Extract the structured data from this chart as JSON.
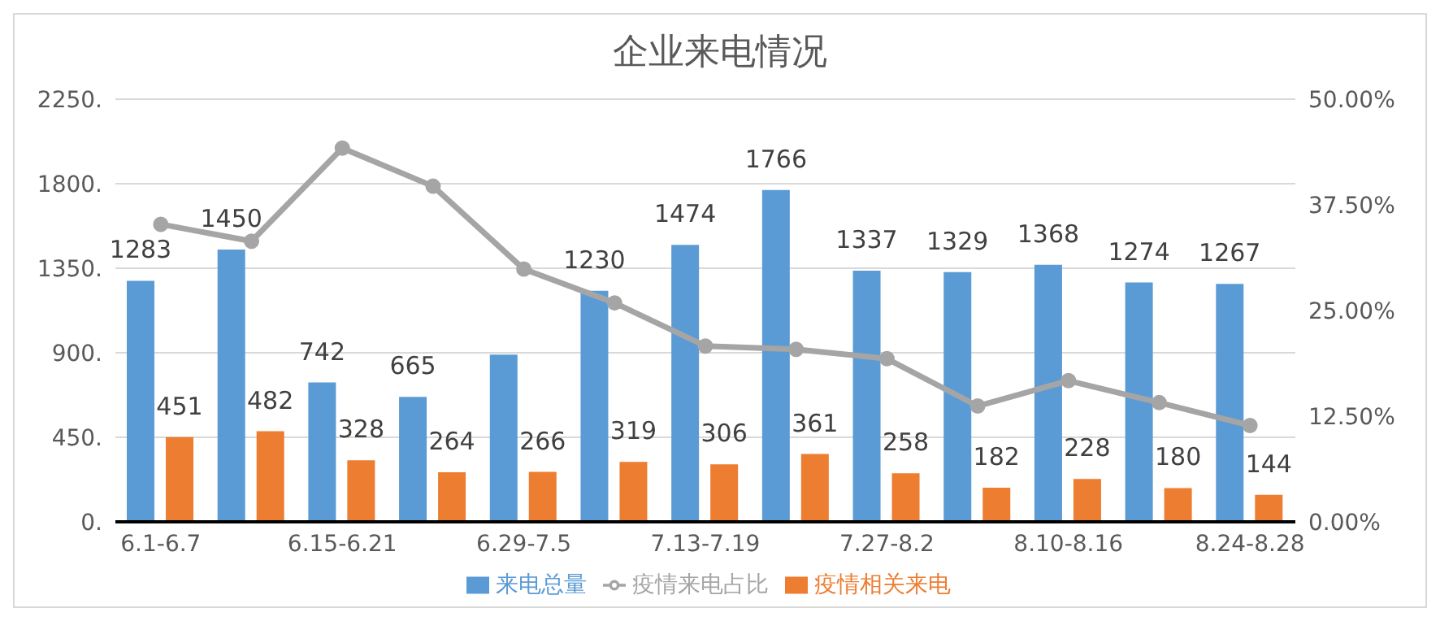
{
  "chart_data": {
    "type": "bar",
    "title": "企业来电情况",
    "categories": [
      "6.1-6.7",
      null,
      "6.15-6.21",
      null,
      "6.29-7.5",
      null,
      "7.13-7.19",
      null,
      "7.27-8.2",
      null,
      "8.10-8.16",
      null,
      "8.24-8.28"
    ],
    "series": [
      {
        "name": "来电总量",
        "color": "#5b9bd5",
        "values": [
          1283,
          1450,
          742,
          665,
          890,
          1230,
          1474,
          1766,
          1337,
          1329,
          1368,
          1274,
          1267
        ],
        "value_labels": [
          "1283",
          "1450",
          "742",
          "665",
          null,
          "1230",
          "1474",
          "1766",
          "1337",
          "1329",
          "1368",
          "1274",
          "1267"
        ]
      },
      {
        "name": "疫情相关来电",
        "color": "#ed7d31",
        "values": [
          451,
          482,
          328,
          264,
          266,
          319,
          306,
          361,
          258,
          182,
          228,
          180,
          144
        ],
        "value_labels": [
          "451",
          "482",
          "328",
          "264",
          "266",
          "319",
          "306",
          "361",
          "258",
          "182",
          "228",
          "180",
          "144"
        ]
      },
      {
        "name": "疫情来电占比",
        "type": "line",
        "axis": "y2",
        "color": "#a5a5a5",
        "values": [
          35.2,
          33.2,
          44.2,
          39.7,
          29.9,
          25.9,
          20.8,
          20.4,
          19.3,
          13.7,
          16.7,
          14.1,
          11.4
        ]
      }
    ],
    "ylim": [
      0,
      2250
    ],
    "yticks": [
      {
        "value": 0,
        "label": "0."
      },
      {
        "value": 450,
        "label": "450."
      },
      {
        "value": 900,
        "label": "900."
      },
      {
        "value": 1350,
        "label": "1350."
      },
      {
        "value": 1800,
        "label": "1800."
      },
      {
        "value": 2250,
        "label": "2250."
      }
    ],
    "y2lim": [
      0,
      50
    ],
    "y2ticks": [
      {
        "value": 0,
        "label": "0.00%"
      },
      {
        "value": 12.5,
        "label": "12.50%"
      },
      {
        "value": 25,
        "label": "25.00%"
      },
      {
        "value": 37.5,
        "label": "37.50%"
      },
      {
        "value": 50,
        "label": "50.00%"
      }
    ],
    "grid": "y",
    "legend": "bottom",
    "marker": "circle",
    "line_style": "solid"
  }
}
